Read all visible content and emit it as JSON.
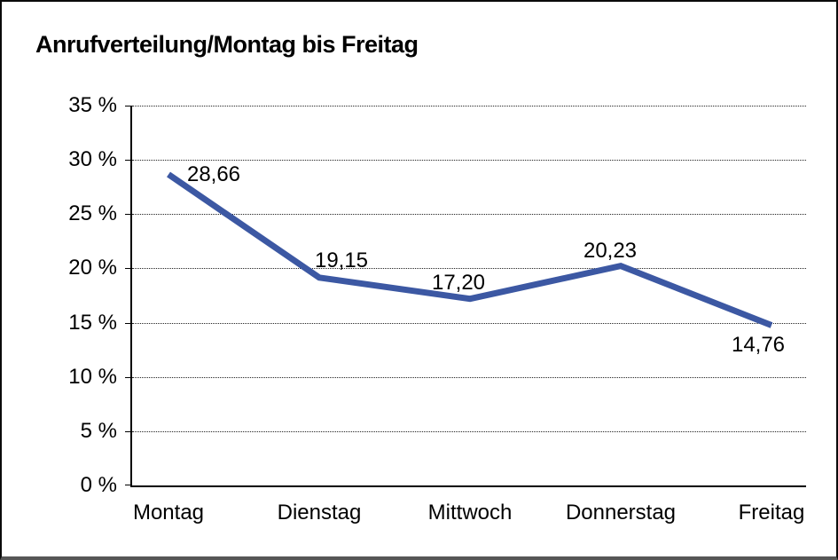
{
  "title": "Anrufverteilung/Montag bis Freitag",
  "chart_data": {
    "type": "line",
    "title": "Anrufverteilung/Montag bis Freitag",
    "categories": [
      "Montag",
      "Dienstag",
      "Mittwoch",
      "Donnerstag",
      "Freitag"
    ],
    "values": [
      28.66,
      19.15,
      17.2,
      20.23,
      14.76
    ],
    "value_labels": [
      "28,66",
      "19,15",
      "17,20",
      "20,23",
      "14,76"
    ],
    "y_tick_labels": [
      "35 %",
      "30 %",
      "25 %",
      "20 %",
      "15 %",
      "10 %",
      "5 %",
      "0 %"
    ],
    "xlabel": "",
    "ylabel": "",
    "ylim": [
      0,
      35
    ],
    "y_step": 5,
    "grid": "horizontal-dotted",
    "legend": "none",
    "line_color": "#3C58A3",
    "text_color": "#000000",
    "frame_color": "#0A0A0A"
  }
}
